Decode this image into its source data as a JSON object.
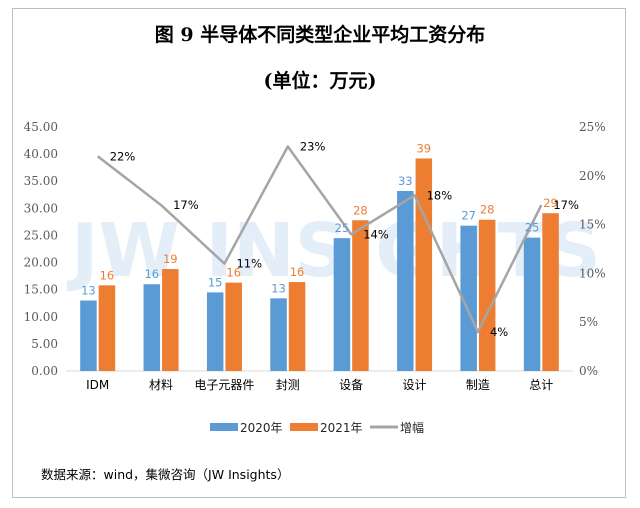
{
  "header": {
    "title": "图 9  半导体不同类型企业平均工资分布",
    "subtitle": "(单位：万元)"
  },
  "watermark": "JW INSIGHTS",
  "source": "数据来源：wind，集微咨询（JW Insights）",
  "chart_data": {
    "type": "bar",
    "categories": [
      "IDM",
      "材料",
      "电子元器件",
      "封测",
      "设备",
      "设计",
      "制造",
      "总计"
    ],
    "series": [
      {
        "name": "2020年",
        "type": "bar",
        "axis": "left",
        "color": "#5b9bd5",
        "values": [
          13,
          16,
          15,
          13,
          25,
          33,
          27,
          25
        ],
        "value_labels": [
          "13",
          "16",
          "15",
          "13",
          "25",
          "33",
          "27",
          "25"
        ]
      },
      {
        "name": "2021年",
        "type": "bar",
        "axis": "left",
        "color": "#ed7d31",
        "values": [
          16,
          19,
          16,
          16,
          28,
          39,
          28,
          29
        ],
        "value_labels": [
          "16",
          "19",
          "16",
          "16",
          "28",
          "39",
          "28",
          "29"
        ]
      },
      {
        "name": "增幅",
        "type": "line",
        "axis": "right",
        "color": "#a5a5a5",
        "values": [
          22,
          17,
          11,
          23,
          14,
          18,
          4,
          17
        ],
        "value_labels": [
          "22%",
          "17%",
          "11%",
          "23%",
          "14%",
          "18%",
          "4%",
          "17%"
        ]
      }
    ],
    "bar_values_precise": {
      "2020年": [
        13.0,
        16.0,
        14.5,
        13.4,
        24.5,
        33.2,
        26.8,
        24.6
      ],
      "2021年": [
        15.8,
        18.8,
        16.3,
        16.4,
        27.8,
        39.2,
        27.9,
        29.1
      ]
    },
    "left_axis": {
      "min": 0,
      "max": 45,
      "step": 5,
      "tick_labels": [
        "0.00",
        "5.00",
        "10.00",
        "15.00",
        "20.00",
        "25.00",
        "30.00",
        "35.00",
        "40.00",
        "45.00"
      ]
    },
    "right_axis": {
      "min": 0,
      "max": 25,
      "step": 5,
      "tick_labels": [
        "0%",
        "5%",
        "10%",
        "15%",
        "20%",
        "25%"
      ]
    },
    "grid": false,
    "legend_position": "bottom"
  }
}
